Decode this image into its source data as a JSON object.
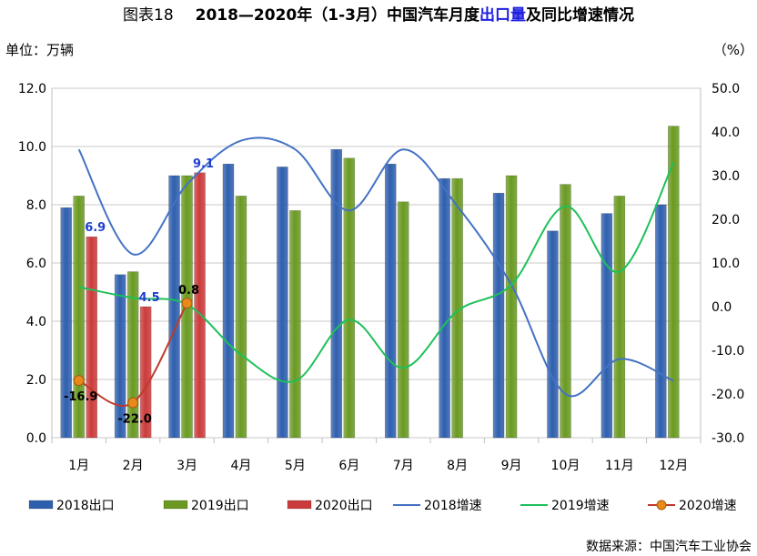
{
  "title": {
    "prefix": "图表18",
    "main_before": "2018—2020年（1-3月）中国汽车月度",
    "main_highlight": "出口量",
    "main_after": "及同比增速情况"
  },
  "unit_left": "单位：万辆",
  "unit_right": "（%）",
  "source": "数据来源：中国汽车工业协会",
  "colors": {
    "bar_2018": "#2e5fae",
    "bar_2019": "#6a9a22",
    "bar_2020": "#cc3b3b",
    "line_2018": "#4472c4",
    "line_2019": "#1ec05a",
    "line_2020": "#c0392b",
    "marker_2020": "#e88a1a",
    "label_blue": "#1f3fd0"
  },
  "chart_data": {
    "type": "bar",
    "categories": [
      "1月",
      "2月",
      "3月",
      "4月",
      "5月",
      "6月",
      "7月",
      "8月",
      "9月",
      "10月",
      "11月",
      "12月"
    ],
    "y_left": {
      "min": 0,
      "max": 12,
      "ticks": [
        "0.0",
        "2.0",
        "4.0",
        "6.0",
        "8.0",
        "10.0",
        "12.0"
      ]
    },
    "y_right": {
      "min": -30,
      "max": 50,
      "ticks": [
        "-30.0",
        "-20.0",
        "-10.0",
        "0.0",
        "10.0",
        "20.0",
        "30.0",
        "40.0",
        "50.0"
      ]
    },
    "bar_series": [
      {
        "name": "2018出口",
        "values": [
          7.9,
          5.6,
          9.0,
          9.4,
          9.3,
          9.9,
          9.4,
          8.9,
          8.4,
          7.1,
          7.7,
          8.0
        ]
      },
      {
        "name": "2019出口",
        "values": [
          8.3,
          5.7,
          9.0,
          8.3,
          7.8,
          9.6,
          8.1,
          8.9,
          9.0,
          8.7,
          8.3,
          10.7
        ]
      },
      {
        "name": "2020出口",
        "values": [
          6.9,
          4.5,
          9.1,
          null,
          null,
          null,
          null,
          null,
          null,
          null,
          null,
          null
        ]
      }
    ],
    "line_series": [
      {
        "name": "2018增速",
        "values": [
          36,
          12,
          28,
          38,
          36,
          22,
          36,
          23,
          5,
          -20,
          -12,
          -17
        ]
      },
      {
        "name": "2019增速",
        "values": [
          4.5,
          2,
          0.5,
          -11,
          -17,
          -3,
          -14,
          -1,
          5,
          23,
          8,
          33
        ]
      },
      {
        "name": "2020增速",
        "values": [
          -16.9,
          -22.0,
          0.8,
          null,
          null,
          null,
          null,
          null,
          null,
          null,
          null,
          null
        ]
      }
    ],
    "data_labels": {
      "bar_2020": [
        "6.9",
        "4.5",
        "9.1"
      ],
      "line_2020": [
        "-16.9",
        "-22.0",
        "0.8"
      ]
    },
    "legend_position": "bottom"
  }
}
